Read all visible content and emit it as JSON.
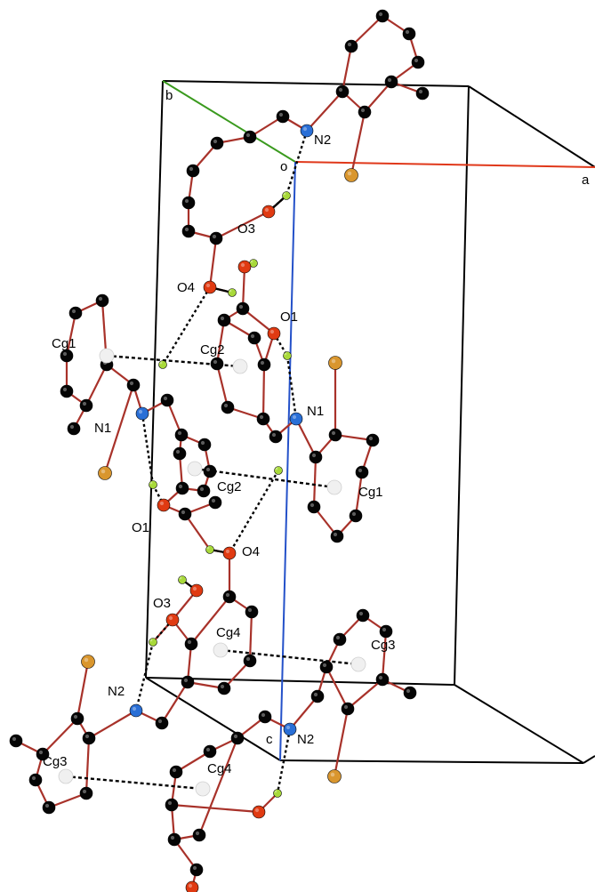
{
  "colors": {
    "background": "#ffffff",
    "cell_edge": "#000000",
    "axis_a": "#e0381a",
    "axis_b": "#3a9a1e",
    "axis_c": "#2451c9",
    "bond": "#a8322a",
    "carbon": "#050505",
    "nitrogen": "#2a6fd6",
    "oxygen": "#e03a12",
    "bromine": "#d9962e",
    "hydrogen": "#a8d93a",
    "centroid": "#f0f0f0",
    "hbond": "#000000"
  },
  "axes": {
    "a": "a",
    "b": "b",
    "c": "c",
    "origin": "o"
  },
  "labels": {
    "n2_top": "N2",
    "o3_top": "O3",
    "o4_top": "O4",
    "o1_right": "O1",
    "cg1_left": "Cg1",
    "cg2_left": "Cg2",
    "n1_left": "N1",
    "n1_right": "N1",
    "cg2_mid": "Cg2",
    "cg1_right": "Cg1",
    "o1_left": "O1",
    "o4_mid": "O4",
    "o3_bottom": "O3",
    "cg4_upper": "Cg4",
    "cg3_right": "Cg3",
    "n2_left": "N2",
    "n2_bottom": "N2",
    "cg3_left": "Cg3",
    "cg4_lower": "Cg4"
  }
}
